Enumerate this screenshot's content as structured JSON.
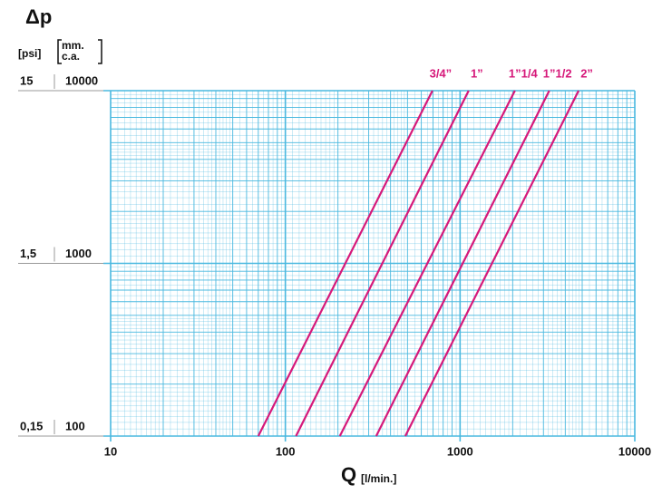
{
  "chart_data": {
    "type": "line",
    "log_x": true,
    "log_y": true,
    "grid": true,
    "grid_color": "#49b8df",
    "y_title": "Δp",
    "y2_unit": "[psi]",
    "y_unit": [
      "mm.",
      "c.a."
    ],
    "x_title": "Q",
    "x_unit": "[l/min.]",
    "xlim": [
      10,
      10000
    ],
    "xticks": [
      10,
      100,
      1000,
      10000
    ],
    "ylim": [
      100,
      10000
    ],
    "yticks": [
      100,
      1000,
      10000
    ],
    "y2lim": [
      0.15,
      15
    ],
    "y2ticks": [
      {
        "value": 0.15,
        "label": "0,15"
      },
      {
        "value": 1.5,
        "label": "1,5"
      },
      15
    ],
    "series": [
      {
        "name": "3/4”",
        "color": "#d6197a",
        "x": [
          70,
          695
        ],
        "values": [
          100,
          10000
        ]
      },
      {
        "name": "1”",
        "color": "#d6197a",
        "x": [
          115,
          1120
        ],
        "values": [
          100,
          10000
        ]
      },
      {
        "name": "1”1/4",
        "color": "#d6197a",
        "x": [
          205,
          2060
        ],
        "values": [
          100,
          10000
        ]
      },
      {
        "name": "1”1/2",
        "color": "#d6197a",
        "x": [
          331,
          3240
        ],
        "values": [
          100,
          10000
        ]
      },
      {
        "name": "2”",
        "color": "#d6197a",
        "x": [
          486,
          4770
        ],
        "values": [
          100,
          10000
        ]
      }
    ]
  }
}
